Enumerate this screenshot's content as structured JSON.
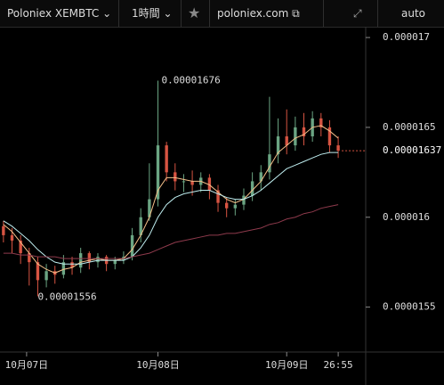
{
  "ui": {
    "symbol": "Poloniex XEMBTC",
    "interval": "1時間",
    "site": "poloniex.com",
    "scale": "auto"
  },
  "chart_data": {
    "type": "candlestick",
    "categories": [
      null,
      null,
      null,
      null,
      null,
      null,
      null,
      null,
      null,
      null,
      null,
      null,
      null,
      null,
      null,
      null,
      null,
      null,
      null,
      null,
      null,
      null,
      null,
      null,
      null,
      null,
      null,
      null,
      null,
      null,
      null,
      null,
      null,
      null,
      null,
      null,
      null,
      null,
      null,
      null
    ],
    "open": [
      1.595e-05,
      1.59e-05,
      1.587e-05,
      1.58e-05,
      1.575e-05,
      1.565e-05,
      1.57e-05,
      1.568e-05,
      1.575e-05,
      1.572e-05,
      1.58e-05,
      1.575e-05,
      1.578e-05,
      1.574e-05,
      1.576e-05,
      1.578e-05,
      1.59e-05,
      1.6e-05,
      1.61e-05,
      1.64e-05,
      1.625e-05,
      1.62e-05,
      1.62e-05,
      1.618e-05,
      1.622e-05,
      1.615e-05,
      1.608e-05,
      1.605e-05,
      1.607e-05,
      1.612e-05,
      1.62e-05,
      1.625e-05,
      1.635e-05,
      1.645e-05,
      1.64e-05,
      1.65e-05,
      1.645e-05,
      1.655e-05,
      1.65e-05,
      1.64e-05
    ],
    "high": [
      1.598e-05,
      1.594e-05,
      1.59e-05,
      1.583e-05,
      1.578e-05,
      1.574e-05,
      1.573e-05,
      1.579e-05,
      1.578e-05,
      1.583e-05,
      1.581e-05,
      1.58e-05,
      1.579e-05,
      1.578e-05,
      1.581e-05,
      1.594e-05,
      1.605e-05,
      1.63e-05,
      1.676e-05,
      1.642e-05,
      1.63e-05,
      1.624e-05,
      1.626e-05,
      1.625e-05,
      1.624e-05,
      1.618e-05,
      1.611e-05,
      1.61e-05,
      1.616e-05,
      1.625e-05,
      1.629e-05,
      1.667e-05,
      1.655e-05,
      1.66e-05,
      1.656e-05,
      1.658e-05,
      1.659e-05,
      1.658e-05,
      1.654e-05,
      1.645e-05
    ],
    "low": [
      1.586e-05,
      1.58e-05,
      1.574e-05,
      1.562e-05,
      1.556e-05,
      1.561e-05,
      1.563e-05,
      1.566e-05,
      1.568e-05,
      1.569e-05,
      1.571e-05,
      1.572e-05,
      1.57e-05,
      1.571e-05,
      1.574e-05,
      1.576e-05,
      1.586e-05,
      1.598e-05,
      1.606e-05,
      1.62e-05,
      1.615e-05,
      1.614e-05,
      1.612e-05,
      1.614e-05,
      1.61e-05,
      1.603e-05,
      1.6e-05,
      1.601e-05,
      1.604e-05,
      1.609e-05,
      1.615e-05,
      1.621e-05,
      1.63e-05,
      1.635e-05,
      1.637e-05,
      1.64e-05,
      1.642e-05,
      1.645e-05,
      1.636e-05,
      1.633e-05
    ],
    "close": [
      1.59e-05,
      1.587e-05,
      1.58e-05,
      1.575e-05,
      1.565e-05,
      1.57e-05,
      1.568e-05,
      1.575e-05,
      1.572e-05,
      1.58e-05,
      1.575e-05,
      1.578e-05,
      1.574e-05,
      1.576e-05,
      1.578e-05,
      1.59e-05,
      1.6e-05,
      1.61e-05,
      1.64e-05,
      1.625e-05,
      1.62e-05,
      1.62e-05,
      1.618e-05,
      1.622e-05,
      1.615e-05,
      1.608e-05,
      1.605e-05,
      1.607e-05,
      1.612e-05,
      1.62e-05,
      1.625e-05,
      1.635e-05,
      1.645e-05,
      1.64e-05,
      1.65e-05,
      1.645e-05,
      1.655e-05,
      1.65e-05,
      1.64e-05,
      1.637e-05
    ],
    "up_color": "#6ba583",
    "down_color": "#d75442",
    "moving_averages": [
      {
        "color": "#f5c08a",
        "values": [
          1.596e-05,
          1.592e-05,
          1.586e-05,
          1.58e-05,
          1.574e-05,
          1.571e-05,
          1.569e-05,
          1.571e-05,
          1.572e-05,
          1.575e-05,
          1.576e-05,
          1.577e-05,
          1.576e-05,
          1.576e-05,
          1.577e-05,
          1.582e-05,
          1.59e-05,
          1.6e-05,
          1.615e-05,
          1.622e-05,
          1.622e-05,
          1.621e-05,
          1.62e-05,
          1.62e-05,
          1.618e-05,
          1.614e-05,
          1.61e-05,
          1.608e-05,
          1.61e-05,
          1.615e-05,
          1.62e-05,
          1.628e-05,
          1.636e-05,
          1.64e-05,
          1.644e-05,
          1.646e-05,
          1.65e-05,
          1.651e-05,
          1.648e-05,
          1.644e-05
        ]
      },
      {
        "color": "#bfeef0",
        "values": [
          1.598e-05,
          1.595e-05,
          1.591e-05,
          1.587e-05,
          1.582e-05,
          1.578e-05,
          1.575e-05,
          1.574e-05,
          1.574e-05,
          1.574e-05,
          1.575e-05,
          1.576e-05,
          1.576e-05,
          1.576e-05,
          1.576e-05,
          1.578e-05,
          1.583e-05,
          1.59e-05,
          1.6e-05,
          1.607e-05,
          1.611e-05,
          1.613e-05,
          1.614e-05,
          1.615e-05,
          1.615e-05,
          1.613e-05,
          1.611e-05,
          1.61e-05,
          1.61e-05,
          1.612e-05,
          1.615e-05,
          1.619e-05,
          1.623e-05,
          1.627e-05,
          1.629e-05,
          1.631e-05,
          1.633e-05,
          1.635e-05,
          1.636e-05,
          1.636e-05
        ]
      },
      {
        "color": "#8e3a4c",
        "values": [
          1.58e-05,
          1.58e-05,
          1.579e-05,
          1.579e-05,
          1.578e-05,
          1.578e-05,
          1.578e-05,
          1.577e-05,
          1.577e-05,
          1.577e-05,
          1.577e-05,
          1.577e-05,
          1.577e-05,
          1.577e-05,
          1.577e-05,
          1.578e-05,
          1.579e-05,
          1.58e-05,
          1.582e-05,
          1.584e-05,
          1.586e-05,
          1.587e-05,
          1.588e-05,
          1.589e-05,
          1.59e-05,
          1.59e-05,
          1.591e-05,
          1.591e-05,
          1.592e-05,
          1.593e-05,
          1.594e-05,
          1.596e-05,
          1.597e-05,
          1.599e-05,
          1.6e-05,
          1.602e-05,
          1.603e-05,
          1.605e-05,
          1.606e-05,
          1.607e-05
        ]
      }
    ],
    "xlim": [
      -0.4,
      42.1
    ],
    "xticks": [
      {
        "value": 2.7,
        "label": "10月07日"
      },
      {
        "value": 18,
        "label": "10月08日"
      },
      {
        "value": 33,
        "label": "10月09日"
      }
    ],
    "countdown": "26:55",
    "ylim": [
      1.525e-05,
      1.706e-05
    ],
    "yticks": [
      1.55e-05,
      1.6e-05,
      1.65e-05,
      1.7e-05
    ]
  }
}
